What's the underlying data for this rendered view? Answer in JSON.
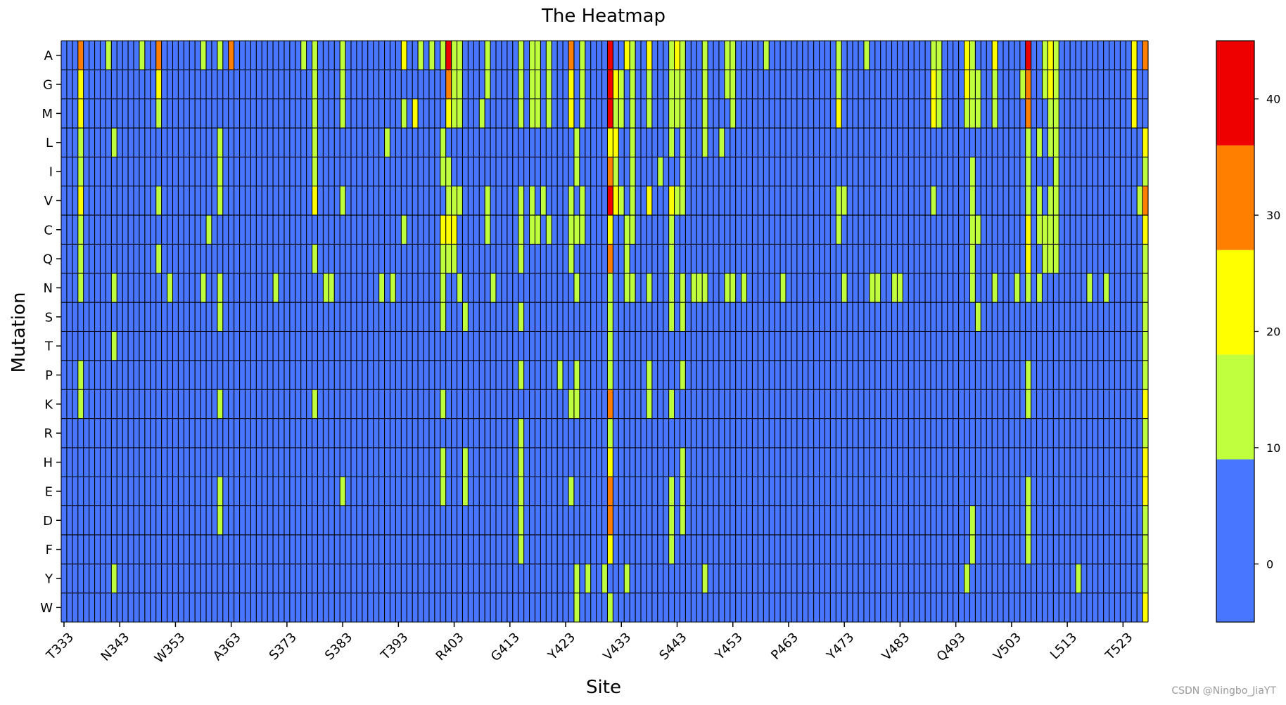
{
  "chart_data": {
    "type": "heatmap",
    "title": "The Heatmap",
    "xlabel": "Site",
    "ylabel": "Mutation",
    "rows": [
      "A",
      "G",
      "M",
      "L",
      "I",
      "V",
      "C",
      "Q",
      "N",
      "S",
      "T",
      "P",
      "K",
      "R",
      "H",
      "E",
      "D",
      "F",
      "Y",
      "W"
    ],
    "x_tick_labels": [
      "T333",
      "N343",
      "W353",
      "A363",
      "S373",
      "S383",
      "T393",
      "R403",
      "G413",
      "Y423",
      "V433",
      "S443",
      "Y453",
      "P463",
      "Y473",
      "V483",
      "Q493",
      "V503",
      "L513",
      "T523"
    ],
    "x_first_site": 333,
    "x_last_site": 527,
    "x_tick_step": 10,
    "default_value": 0,
    "colorbar": {
      "bins": [
        {
          "from": 0,
          "to": 9,
          "color": "#4876FF"
        },
        {
          "from": 9,
          "to": 18,
          "color": "#C0FF3E"
        },
        {
          "from": 18,
          "to": 27,
          "color": "#FFFF00"
        },
        {
          "from": 27,
          "to": 36,
          "color": "#FF7F00"
        },
        {
          "from": 36,
          "to": 45,
          "color": "#EE0000"
        }
      ],
      "vmin": -5,
      "vmax": 45,
      "ticks": [
        0,
        10,
        20,
        30,
        40
      ]
    },
    "nonzero_cells": {
      "A": [
        [
          336,
          30
        ],
        [
          341,
          12
        ],
        [
          347,
          12
        ],
        [
          350,
          32
        ],
        [
          358,
          12
        ],
        [
          361,
          12
        ],
        [
          363,
          30
        ],
        [
          376,
          12
        ],
        [
          378,
          12
        ],
        [
          383,
          12
        ],
        [
          394,
          20
        ],
        [
          397,
          12
        ],
        [
          399,
          12
        ],
        [
          401,
          12
        ],
        [
          402,
          42
        ],
        [
          403,
          12
        ],
        [
          404,
          12
        ],
        [
          409,
          12
        ],
        [
          415,
          12
        ],
        [
          417,
          12
        ],
        [
          418,
          12
        ],
        [
          420,
          12
        ],
        [
          424,
          30
        ],
        [
          426,
          12
        ],
        [
          431,
          40
        ],
        [
          434,
          22
        ],
        [
          435,
          12
        ],
        [
          438,
          22
        ],
        [
          442,
          12
        ],
        [
          443,
          20
        ],
        [
          444,
          12
        ],
        [
          448,
          12
        ],
        [
          452,
          12
        ],
        [
          453,
          12
        ],
        [
          459,
          12
        ],
        [
          472,
          12
        ],
        [
          477,
          12
        ],
        [
          489,
          12
        ],
        [
          490,
          12
        ],
        [
          495,
          20
        ],
        [
          496,
          12
        ],
        [
          500,
          20
        ],
        [
          506,
          40
        ],
        [
          509,
          12
        ],
        [
          510,
          20
        ],
        [
          511,
          12
        ],
        [
          525,
          20
        ],
        [
          527,
          30
        ]
      ],
      "G": [
        [
          336,
          20
        ],
        [
          350,
          22
        ],
        [
          378,
          12
        ],
        [
          383,
          12
        ],
        [
          402,
          30
        ],
        [
          403,
          12
        ],
        [
          404,
          12
        ],
        [
          409,
          12
        ],
        [
          415,
          12
        ],
        [
          417,
          12
        ],
        [
          418,
          12
        ],
        [
          420,
          12
        ],
        [
          424,
          20
        ],
        [
          426,
          12
        ],
        [
          431,
          40
        ],
        [
          432,
          20
        ],
        [
          433,
          12
        ],
        [
          435,
          12
        ],
        [
          438,
          12
        ],
        [
          442,
          12
        ],
        [
          443,
          12
        ],
        [
          444,
          12
        ],
        [
          448,
          12
        ],
        [
          452,
          12
        ],
        [
          453,
          12
        ],
        [
          472,
          12
        ],
        [
          489,
          22
        ],
        [
          490,
          12
        ],
        [
          495,
          20
        ],
        [
          496,
          12
        ],
        [
          497,
          12
        ],
        [
          500,
          12
        ],
        [
          505,
          12
        ],
        [
          506,
          30
        ],
        [
          509,
          12
        ],
        [
          510,
          20
        ],
        [
          511,
          12
        ],
        [
          525,
          20
        ]
      ],
      "M": [
        [
          336,
          20
        ],
        [
          350,
          12
        ],
        [
          378,
          12
        ],
        [
          383,
          12
        ],
        [
          394,
          12
        ],
        [
          396,
          20
        ],
        [
          402,
          20
        ],
        [
          403,
          12
        ],
        [
          404,
          12
        ],
        [
          408,
          12
        ],
        [
          415,
          12
        ],
        [
          417,
          12
        ],
        [
          418,
          12
        ],
        [
          420,
          12
        ],
        [
          424,
          20
        ],
        [
          426,
          12
        ],
        [
          431,
          40
        ],
        [
          432,
          12
        ],
        [
          433,
          12
        ],
        [
          435,
          12
        ],
        [
          438,
          12
        ],
        [
          442,
          12
        ],
        [
          443,
          12
        ],
        [
          444,
          12
        ],
        [
          448,
          12
        ],
        [
          453,
          12
        ],
        [
          472,
          20
        ],
        [
          489,
          20
        ],
        [
          490,
          12
        ],
        [
          495,
          12
        ],
        [
          496,
          12
        ],
        [
          497,
          12
        ],
        [
          500,
          12
        ],
        [
          506,
          30
        ],
        [
          510,
          12
        ],
        [
          511,
          12
        ],
        [
          525,
          20
        ]
      ],
      "L": [
        [
          336,
          12
        ],
        [
          342,
          12
        ],
        [
          361,
          12
        ],
        [
          378,
          12
        ],
        [
          391,
          12
        ],
        [
          401,
          12
        ],
        [
          425,
          12
        ],
        [
          431,
          20
        ],
        [
          432,
          20
        ],
        [
          435,
          12
        ],
        [
          442,
          12
        ],
        [
          444,
          12
        ],
        [
          448,
          12
        ],
        [
          451,
          12
        ],
        [
          506,
          12
        ],
        [
          508,
          12
        ],
        [
          510,
          12
        ],
        [
          511,
          12
        ],
        [
          527,
          20
        ]
      ],
      "I": [
        [
          336,
          12
        ],
        [
          361,
          12
        ],
        [
          378,
          12
        ],
        [
          401,
          12
        ],
        [
          402,
          12
        ],
        [
          425,
          12
        ],
        [
          431,
          30
        ],
        [
          432,
          12
        ],
        [
          435,
          12
        ],
        [
          440,
          12
        ],
        [
          444,
          12
        ],
        [
          496,
          12
        ],
        [
          506,
          12
        ],
        [
          511,
          12
        ],
        [
          527,
          12
        ]
      ],
      "V": [
        [
          336,
          20
        ],
        [
          350,
          12
        ],
        [
          361,
          12
        ],
        [
          378,
          20
        ],
        [
          383,
          12
        ],
        [
          402,
          12
        ],
        [
          403,
          12
        ],
        [
          404,
          12
        ],
        [
          409,
          12
        ],
        [
          415,
          12
        ],
        [
          417,
          12
        ],
        [
          419,
          12
        ],
        [
          424,
          12
        ],
        [
          426,
          12
        ],
        [
          431,
          40
        ],
        [
          432,
          20
        ],
        [
          433,
          12
        ],
        [
          435,
          12
        ],
        [
          438,
          20
        ],
        [
          442,
          20
        ],
        [
          443,
          12
        ],
        [
          444,
          12
        ],
        [
          472,
          12
        ],
        [
          473,
          12
        ],
        [
          489,
          12
        ],
        [
          496,
          12
        ],
        [
          506,
          12
        ],
        [
          508,
          12
        ],
        [
          510,
          12
        ],
        [
          511,
          12
        ],
        [
          526,
          12
        ],
        [
          527,
          30
        ]
      ],
      "C": [
        [
          336,
          12
        ],
        [
          359,
          12
        ],
        [
          394,
          12
        ],
        [
          401,
          20
        ],
        [
          402,
          20
        ],
        [
          403,
          20
        ],
        [
          409,
          12
        ],
        [
          415,
          12
        ],
        [
          417,
          12
        ],
        [
          418,
          12
        ],
        [
          420,
          12
        ],
        [
          424,
          12
        ],
        [
          425,
          12
        ],
        [
          426,
          12
        ],
        [
          431,
          20
        ],
        [
          434,
          12
        ],
        [
          435,
          12
        ],
        [
          442,
          12
        ],
        [
          472,
          12
        ],
        [
          496,
          12
        ],
        [
          497,
          12
        ],
        [
          506,
          20
        ],
        [
          508,
          12
        ],
        [
          509,
          12
        ],
        [
          510,
          12
        ],
        [
          511,
          12
        ],
        [
          527,
          20
        ]
      ],
      "Q": [
        [
          336,
          12
        ],
        [
          350,
          12
        ],
        [
          378,
          12
        ],
        [
          401,
          12
        ],
        [
          402,
          12
        ],
        [
          403,
          12
        ],
        [
          415,
          12
        ],
        [
          424,
          12
        ],
        [
          431,
          30
        ],
        [
          434,
          12
        ],
        [
          442,
          12
        ],
        [
          496,
          12
        ],
        [
          506,
          20
        ],
        [
          509,
          12
        ],
        [
          510,
          12
        ],
        [
          511,
          12
        ],
        [
          527,
          12
        ]
      ],
      "N": [
        [
          336,
          12
        ],
        [
          342,
          12
        ],
        [
          352,
          12
        ],
        [
          358,
          12
        ],
        [
          361,
          12
        ],
        [
          371,
          12
        ],
        [
          380,
          12
        ],
        [
          381,
          12
        ],
        [
          390,
          12
        ],
        [
          392,
          12
        ],
        [
          401,
          12
        ],
        [
          404,
          12
        ],
        [
          410,
          12
        ],
        [
          425,
          12
        ],
        [
          431,
          12
        ],
        [
          434,
          12
        ],
        [
          435,
          12
        ],
        [
          438,
          12
        ],
        [
          442,
          12
        ],
        [
          444,
          12
        ],
        [
          446,
          12
        ],
        [
          447,
          12
        ],
        [
          448,
          12
        ],
        [
          452,
          12
        ],
        [
          453,
          12
        ],
        [
          455,
          12
        ],
        [
          462,
          12
        ],
        [
          473,
          12
        ],
        [
          478,
          12
        ],
        [
          479,
          12
        ],
        [
          482,
          12
        ],
        [
          483,
          12
        ],
        [
          496,
          12
        ],
        [
          500,
          12
        ],
        [
          504,
          12
        ],
        [
          506,
          12
        ],
        [
          508,
          12
        ],
        [
          517,
          12
        ],
        [
          520,
          12
        ],
        [
          527,
          12
        ]
      ],
      "S": [
        [
          361,
          12
        ],
        [
          401,
          12
        ],
        [
          405,
          12
        ],
        [
          415,
          12
        ],
        [
          431,
          12
        ],
        [
          442,
          12
        ],
        [
          444,
          12
        ],
        [
          497,
          12
        ],
        [
          527,
          12
        ]
      ],
      "T": [
        [
          342,
          12
        ],
        [
          431,
          12
        ],
        [
          527,
          12
        ]
      ],
      "P": [
        [
          336,
          12
        ],
        [
          415,
          12
        ],
        [
          422,
          12
        ],
        [
          425,
          12
        ],
        [
          431,
          12
        ],
        [
          438,
          12
        ],
        [
          444,
          12
        ],
        [
          506,
          12
        ],
        [
          527,
          12
        ]
      ],
      "K": [
        [
          336,
          12
        ],
        [
          361,
          12
        ],
        [
          378,
          12
        ],
        [
          401,
          12
        ],
        [
          424,
          12
        ],
        [
          425,
          12
        ],
        [
          431,
          30
        ],
        [
          438,
          12
        ],
        [
          442,
          12
        ],
        [
          506,
          12
        ],
        [
          527,
          20
        ]
      ],
      "R": [
        [
          415,
          12
        ],
        [
          431,
          12
        ],
        [
          527,
          12
        ]
      ],
      "H": [
        [
          401,
          12
        ],
        [
          405,
          12
        ],
        [
          415,
          12
        ],
        [
          431,
          20
        ],
        [
          444,
          12
        ],
        [
          527,
          20
        ]
      ],
      "E": [
        [
          361,
          12
        ],
        [
          383,
          12
        ],
        [
          401,
          12
        ],
        [
          405,
          12
        ],
        [
          415,
          12
        ],
        [
          424,
          12
        ],
        [
          431,
          30
        ],
        [
          442,
          12
        ],
        [
          444,
          12
        ],
        [
          506,
          12
        ],
        [
          527,
          20
        ]
      ],
      "D": [
        [
          361,
          12
        ],
        [
          415,
          12
        ],
        [
          431,
          30
        ],
        [
          442,
          12
        ],
        [
          444,
          12
        ],
        [
          496,
          12
        ],
        [
          506,
          12
        ],
        [
          527,
          12
        ]
      ],
      "F": [
        [
          415,
          12
        ],
        [
          431,
          20
        ],
        [
          442,
          12
        ],
        [
          496,
          12
        ],
        [
          506,
          12
        ],
        [
          527,
          12
        ]
      ],
      "Y": [
        [
          342,
          12
        ],
        [
          425,
          12
        ],
        [
          427,
          12
        ],
        [
          430,
          12
        ],
        [
          434,
          12
        ],
        [
          448,
          12
        ],
        [
          495,
          12
        ],
        [
          515,
          12
        ],
        [
          527,
          12
        ]
      ],
      "W": [
        [
          425,
          12
        ],
        [
          431,
          12
        ],
        [
          527,
          20
        ]
      ]
    }
  },
  "watermark": "CSDN @Ningbo_JiaYT"
}
